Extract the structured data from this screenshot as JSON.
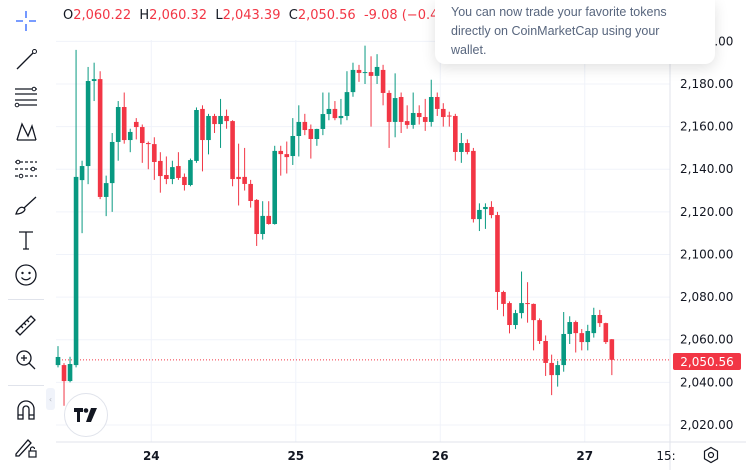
{
  "legend": {
    "o_label": "O",
    "o": "2,060.22",
    "h_label": "H",
    "h": "2,060.32",
    "l_label": "L",
    "l": "2,043.39",
    "c_label": "C",
    "c": "2,050.56",
    "change": "-9.08 (−0.4"
  },
  "popup": {
    "lines": [
      "You can now trade your favorite tokens",
      "directly on CoinMarketCap using your",
      "wallet."
    ]
  },
  "current_price_label": "2,050.56",
  "logo": "TV",
  "toolbar": {
    "icons": [
      "crosshair-icon",
      "trend-line-icon",
      "fib-retracement-icon",
      "pattern-icon",
      "forecast-icon",
      "brush-icon",
      "text-icon",
      "emoji-icon",
      "ruler-icon",
      "zoom-in-icon",
      "magnet-icon",
      "lock-drawings-icon"
    ]
  },
  "colors": {
    "up": "#089981",
    "down": "#f23645",
    "grid": "#f0f3fa",
    "accent": "#2962ff"
  },
  "chart_data": {
    "type": "candlestick",
    "interval": "1h",
    "ylim": [
      2010,
      2205
    ],
    "yticks": [
      "2,020.00",
      "2,040.00",
      "2,060.00",
      "2,080.00",
      "2,100.00",
      "2,120.00",
      "2,140.00",
      "2,160.00",
      "2,180.00",
      "2,200.00"
    ],
    "ytick_values": [
      2020,
      2040,
      2060,
      2080,
      2100,
      2120,
      2140,
      2160,
      2180,
      2200
    ],
    "xticks": [
      {
        "label": "24",
        "index": 15.5
      },
      {
        "label": "25",
        "index": 39.5
      },
      {
        "label": "26",
        "index": 63.5
      },
      {
        "label": "27",
        "index": 87.5
      },
      {
        "label": "15:",
        "index": 101
      }
    ],
    "last_price": 2050.56,
    "ohlc": [
      [
        2048.1,
        2057,
        2047,
        2051.9
      ],
      [
        2048.1,
        2049,
        2029,
        2040.6
      ],
      [
        2040.6,
        2052,
        2040,
        2048.6
      ],
      [
        2048.1,
        2196,
        2047,
        2136.4
      ],
      [
        2134.9,
        2144,
        2110,
        2141.5
      ],
      [
        2141.5,
        2188,
        2133,
        2181.4
      ],
      [
        2181.4,
        2190,
        2172,
        2182.3
      ],
      [
        2182.3,
        2186,
        2126,
        2127
      ],
      [
        2127,
        2137,
        2118,
        2133.5
      ],
      [
        2133.5,
        2157,
        2120,
        2152.8
      ],
      [
        2152.8,
        2172,
        2144,
        2169.2
      ],
      [
        2169.2,
        2176,
        2152,
        2153.7
      ],
      [
        2153.7,
        2159,
        2148,
        2157.5
      ],
      [
        2162.2,
        2164,
        2154,
        2159.8
      ],
      [
        2159.8,
        2161,
        2143,
        2152.3
      ],
      [
        2152.3,
        2153,
        2140,
        2151.8
      ],
      [
        2151.8,
        2155,
        2135,
        2143.4
      ],
      [
        2143.9,
        2148,
        2129,
        2136.8
      ],
      [
        2137.3,
        2146,
        2133,
        2135.4
      ],
      [
        2135.4,
        2144,
        2133,
        2141
      ],
      [
        2141.5,
        2148,
        2135,
        2135.9
      ],
      [
        2136.4,
        2138,
        2130,
        2132.6
      ],
      [
        2132.6,
        2145,
        2132,
        2144.3
      ],
      [
        2143.9,
        2169,
        2143,
        2167.8
      ],
      [
        2168.3,
        2170,
        2139,
        2153.7
      ],
      [
        2153.7,
        2166,
        2147,
        2165
      ],
      [
        2165,
        2166,
        2157,
        2161.2
      ],
      [
        2161.2,
        2173,
        2150,
        2165
      ],
      [
        2165,
        2168,
        2159,
        2162.6
      ],
      [
        2162.6,
        2163,
        2132,
        2135.4
      ],
      [
        2136.4,
        2152,
        2123,
        2135.4
      ],
      [
        2136.4,
        2150,
        2130,
        2133.1
      ],
      [
        2133.1,
        2135,
        2122,
        2125.1
      ],
      [
        2125.6,
        2126,
        2104,
        2109.6
      ],
      [
        2109.6,
        2125,
        2107,
        2118.1
      ],
      [
        2118.1,
        2125,
        2114,
        2114.3
      ],
      [
        2114.3,
        2151,
        2114,
        2148.6
      ],
      [
        2148.6,
        2151,
        2137,
        2147.1
      ],
      [
        2147.1,
        2153,
        2138,
        2145.7
      ],
      [
        2146.2,
        2164,
        2142,
        2155.6
      ],
      [
        2155.6,
        2170,
        2146,
        2162.2
      ],
      [
        2162.2,
        2166,
        2156,
        2158.4
      ],
      [
        2158.9,
        2161,
        2145,
        2154.2
      ],
      [
        2154.2,
        2159,
        2151,
        2158.9
      ],
      [
        2158.9,
        2176,
        2156,
        2165.9
      ],
      [
        2165.9,
        2176,
        2163,
        2168.3
      ],
      [
        2168.3,
        2172,
        2163,
        2164
      ],
      [
        2164,
        2173,
        2161,
        2165
      ],
      [
        2165,
        2186,
        2163,
        2176.2
      ],
      [
        2176.2,
        2190,
        2174,
        2186.6
      ],
      [
        2186.6,
        2189,
        2181,
        2185.2
      ],
      [
        2185.6,
        2198,
        2180,
        2185.6
      ],
      [
        2185.6,
        2193,
        2160,
        2183.8
      ],
      [
        2183.8,
        2194,
        2180,
        2188
      ],
      [
        2186.6,
        2189,
        2170,
        2175.8
      ],
      [
        2175.8,
        2177,
        2150,
        2162.2
      ],
      [
        2162.2,
        2185,
        2155,
        2173.4
      ],
      [
        2173.9,
        2176,
        2157,
        2162.2
      ],
      [
        2162.6,
        2170,
        2159,
        2160.8
      ],
      [
        2160.8,
        2176,
        2159,
        2166.4
      ],
      [
        2166.4,
        2170,
        2161,
        2164.5
      ],
      [
        2164.5,
        2173,
        2158,
        2162.2
      ],
      [
        2162.2,
        2182,
        2160,
        2173.9
      ],
      [
        2173.9,
        2176,
        2165,
        2168.3
      ],
      [
        2168.3,
        2171,
        2160,
        2164.5
      ],
      [
        2165.2,
        2167,
        2160,
        2165
      ],
      [
        2165,
        2166,
        2144,
        2148.1
      ],
      [
        2148.1,
        2157,
        2143,
        2152.3
      ],
      [
        2152.3,
        2154,
        2147,
        2148.1
      ],
      [
        2148.6,
        2150,
        2115,
        2116.6
      ],
      [
        2116.6,
        2124,
        2111,
        2120.9
      ],
      [
        2121.3,
        2124,
        2112,
        2122.3
      ],
      [
        2122.3,
        2125,
        2117,
        2118.5
      ],
      [
        2118.5,
        2120,
        2074,
        2082.4
      ],
      [
        2082.4,
        2083,
        2071,
        2076.8
      ],
      [
        2077.2,
        2078,
        2063,
        2066.9
      ],
      [
        2066.9,
        2074,
        2065,
        2072.5
      ],
      [
        2072.5,
        2092,
        2070,
        2077.2
      ],
      [
        2077.2,
        2087,
        2068,
        2076.8
      ],
      [
        2076.8,
        2077,
        2055,
        2069.2
      ],
      [
        2069.2,
        2070,
        2058,
        2059.4
      ],
      [
        2059.4,
        2062,
        2043,
        2049.1
      ],
      [
        2049.1,
        2053,
        2034,
        2043.4
      ],
      [
        2043.4,
        2050,
        2038,
        2048.1
      ],
      [
        2048.1,
        2073,
        2045,
        2062.7
      ],
      [
        2062.7,
        2071,
        2058,
        2068.3
      ],
      [
        2068.3,
        2069,
        2054,
        2063.1
      ],
      [
        2063.1,
        2065,
        2055,
        2058.9
      ],
      [
        2058.9,
        2067,
        2055,
        2064.1
      ],
      [
        2063.1,
        2075,
        2061,
        2071.6
      ],
      [
        2071.6,
        2074,
        2066,
        2067.8
      ],
      [
        2067.8,
        2068,
        2058,
        2058.9
      ],
      [
        2060.22,
        2060.32,
        2043.39,
        2050.56
      ]
    ]
  }
}
